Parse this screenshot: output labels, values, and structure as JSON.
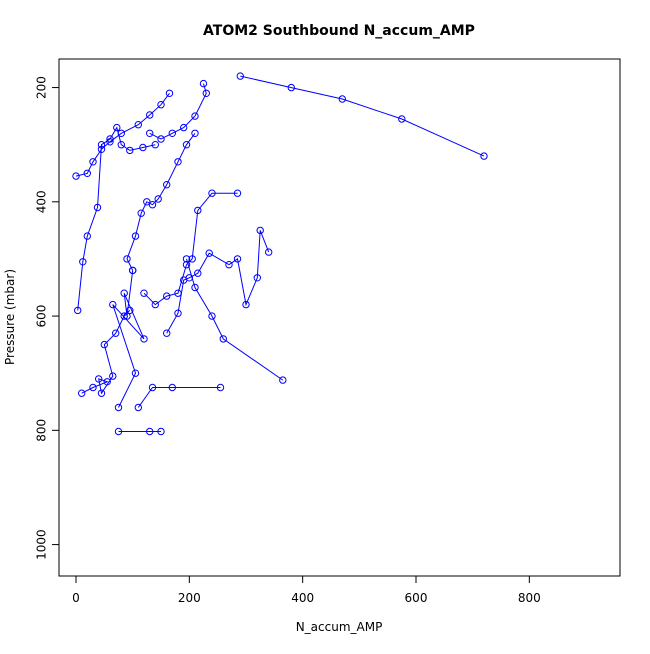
{
  "chart_data": {
    "type": "line",
    "title": "ATOM2 Southbound N_accum_AMP",
    "xlabel": "N_accum_AMP",
    "ylabel": "Pressure (mbar)",
    "xlim": [
      -30,
      960
    ],
    "ylim": [
      1055,
      150
    ],
    "y_inverted": true,
    "xticks": [
      0,
      200,
      400,
      600,
      800
    ],
    "yticks": [
      200,
      400,
      600,
      800,
      1000
    ],
    "grid": false,
    "line_color": "#0000ff",
    "marker": "open-circle",
    "series": [
      {
        "x": [
          75,
          130,
          150
        ],
        "y": [
          802,
          802,
          802
        ]
      },
      {
        "x": [
          75,
          105,
          65,
          120,
          85,
          90,
          100
        ],
        "y": [
          760,
          700,
          580,
          640,
          560,
          600,
          520
        ]
      },
      {
        "x": [
          10,
          30,
          55,
          40,
          45,
          65,
          50,
          70,
          85,
          95
        ],
        "y": [
          735,
          725,
          715,
          710,
          735,
          705,
          650,
          630,
          600,
          590
        ]
      },
      {
        "x": [
          110,
          135,
          170,
          255
        ],
        "y": [
          760,
          725,
          725,
          725
        ]
      },
      {
        "x": [
          365,
          260,
          240,
          210,
          195
        ],
        "y": [
          712,
          640,
          600,
          550,
          500
        ]
      },
      {
        "x": [
          3,
          12,
          20,
          38,
          45,
          60,
          72,
          80,
          95,
          118,
          140
        ],
        "y": [
          590,
          505,
          460,
          410,
          300,
          290,
          270,
          300,
          310,
          305,
          300
        ]
      },
      {
        "x": [
          340,
          325,
          320,
          300,
          285,
          270,
          235,
          215,
          200,
          190,
          180,
          160
        ],
        "y": [
          488,
          450,
          533,
          580,
          500,
          510,
          490,
          525,
          533,
          537,
          595,
          630
        ]
      },
      {
        "x": [
          720,
          575,
          470,
          380,
          290
        ],
        "y": [
          320,
          255,
          220,
          200,
          180
        ]
      },
      {
        "x": [
          285,
          240,
          215,
          205,
          195,
          180,
          160,
          140,
          120
        ],
        "y": [
          385,
          385,
          415,
          500,
          510,
          560,
          565,
          580,
          560
        ]
      },
      {
        "x": [
          0,
          20,
          30,
          45,
          60,
          80,
          110,
          130,
          150,
          165
        ],
        "y": [
          355,
          350,
          330,
          308,
          295,
          280,
          265,
          248,
          230,
          210
        ]
      },
      {
        "x": [
          100,
          90,
          105,
          115,
          125,
          135,
          145,
          160,
          180,
          195,
          210
        ],
        "y": [
          520,
          500,
          460,
          420,
          400,
          405,
          395,
          370,
          330,
          300,
          280
        ]
      },
      {
        "x": [
          225,
          230,
          210,
          190,
          170,
          150,
          130
        ],
        "y": [
          193,
          210,
          250,
          270,
          280,
          290,
          280
        ]
      }
    ]
  }
}
